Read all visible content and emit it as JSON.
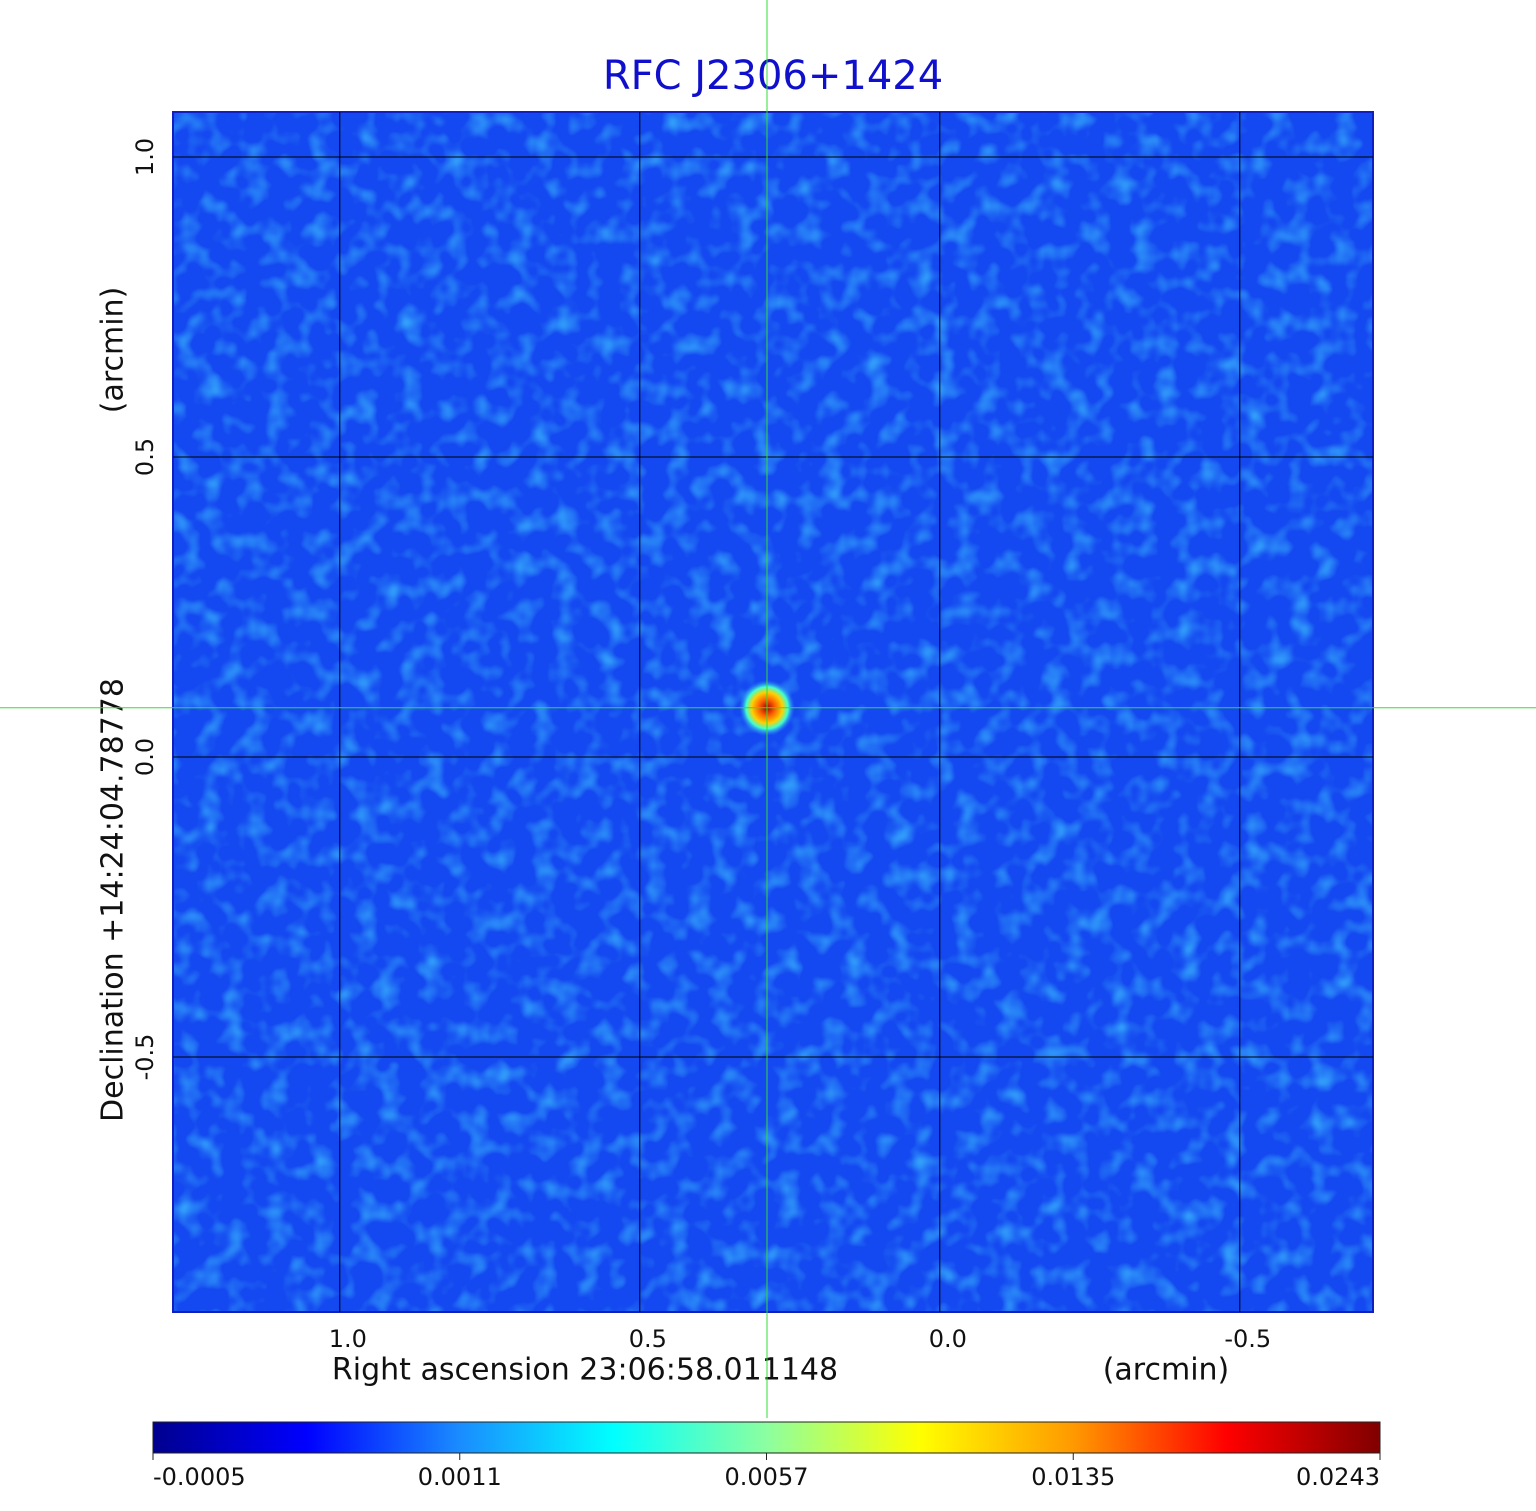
{
  "chart_data": {
    "type": "image",
    "title": "RFC J2306+1424",
    "x_label": "Right ascension  23:06:58.011148",
    "x_unit": "(arcmin)",
    "y_label": "Declination  +14:24:04.78778",
    "y_unit": "(arcmin)",
    "xlim": [
      1.278,
      -0.722
    ],
    "ylim": [
      -0.925,
      1.075
    ],
    "xticks": [
      {
        "value": 1,
        "label": "1.0"
      },
      0.5,
      {
        "value": 0,
        "label": "0.0"
      },
      -0.5
    ],
    "yticks": [
      -0.5,
      {
        "value": 0,
        "label": "0.0"
      },
      0.5,
      {
        "value": 1,
        "label": "1.0"
      }
    ],
    "grid": true,
    "crosshair": {
      "x": 0.288,
      "y": 0.082,
      "color": "#33dd33"
    },
    "clim": [
      -0.0005,
      0.0243
    ],
    "cticks": [
      -0.0005,
      0.0011,
      0.0057,
      0.0135,
      0.0243
    ],
    "colormap": [
      "#00008f",
      "#0000ff",
      "#1a8cff",
      "#00ffff",
      "#8cffa0",
      "#ffff00",
      "#ff9900",
      "#ff0000",
      "#800000"
    ]
  }
}
